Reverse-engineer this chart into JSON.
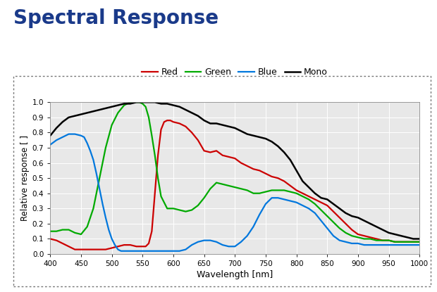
{
  "title": "Spectral Response",
  "title_color": "#1a3a8a",
  "title_fontsize": 20,
  "xlabel": "Wavelength [nm]",
  "ylabel": "Relative response [ ]",
  "xlim": [
    400,
    1000
  ],
  "ylim": [
    0.0,
    1.0
  ],
  "xticks": [
    400,
    450,
    500,
    550,
    600,
    650,
    700,
    750,
    800,
    850,
    900,
    950,
    1000
  ],
  "yticks": [
    0.0,
    0.1,
    0.2,
    0.3,
    0.4,
    0.5,
    0.6,
    0.7,
    0.8,
    0.9,
    1.0
  ],
  "background_color": "#ffffff",
  "plot_bg_color": "#e8e8e8",
  "red": {
    "wavelengths": [
      400,
      410,
      420,
      430,
      440,
      450,
      460,
      470,
      480,
      490,
      500,
      510,
      520,
      530,
      540,
      550,
      555,
      560,
      565,
      570,
      575,
      580,
      585,
      590,
      595,
      600,
      610,
      620,
      630,
      640,
      650,
      660,
      670,
      680,
      690,
      700,
      710,
      720,
      730,
      740,
      750,
      760,
      770,
      780,
      790,
      800,
      810,
      820,
      830,
      840,
      850,
      860,
      870,
      880,
      890,
      900,
      910,
      920,
      930,
      940,
      950,
      960,
      970,
      980,
      990,
      1000
    ],
    "values": [
      0.1,
      0.09,
      0.07,
      0.05,
      0.03,
      0.03,
      0.03,
      0.03,
      0.03,
      0.03,
      0.04,
      0.05,
      0.06,
      0.06,
      0.05,
      0.05,
      0.05,
      0.07,
      0.15,
      0.4,
      0.65,
      0.82,
      0.87,
      0.88,
      0.88,
      0.87,
      0.86,
      0.84,
      0.8,
      0.75,
      0.68,
      0.67,
      0.68,
      0.65,
      0.64,
      0.63,
      0.6,
      0.58,
      0.56,
      0.55,
      0.53,
      0.51,
      0.5,
      0.48,
      0.45,
      0.42,
      0.4,
      0.38,
      0.36,
      0.34,
      0.32,
      0.28,
      0.24,
      0.2,
      0.16,
      0.13,
      0.12,
      0.11,
      0.1,
      0.09,
      0.09,
      0.08,
      0.08,
      0.08,
      0.08,
      0.08
    ],
    "color": "#cc0000",
    "linewidth": 1.6,
    "label": "Red"
  },
  "green": {
    "wavelengths": [
      400,
      410,
      420,
      430,
      440,
      450,
      460,
      470,
      480,
      490,
      500,
      510,
      520,
      530,
      535,
      540,
      545,
      550,
      555,
      560,
      565,
      570,
      575,
      580,
      590,
      600,
      610,
      620,
      630,
      640,
      650,
      660,
      670,
      680,
      690,
      700,
      710,
      720,
      730,
      740,
      750,
      760,
      770,
      780,
      790,
      800,
      810,
      820,
      830,
      840,
      850,
      860,
      870,
      880,
      890,
      900,
      910,
      920,
      930,
      940,
      950,
      960,
      970,
      980,
      990,
      1000
    ],
    "values": [
      0.15,
      0.15,
      0.16,
      0.16,
      0.14,
      0.13,
      0.18,
      0.3,
      0.5,
      0.7,
      0.85,
      0.93,
      0.98,
      1.0,
      1.0,
      1.0,
      1.0,
      0.99,
      0.97,
      0.9,
      0.78,
      0.65,
      0.5,
      0.38,
      0.3,
      0.3,
      0.29,
      0.28,
      0.29,
      0.32,
      0.37,
      0.43,
      0.47,
      0.46,
      0.45,
      0.44,
      0.43,
      0.42,
      0.4,
      0.4,
      0.41,
      0.42,
      0.42,
      0.42,
      0.41,
      0.4,
      0.38,
      0.36,
      0.33,
      0.29,
      0.25,
      0.21,
      0.17,
      0.14,
      0.12,
      0.11,
      0.1,
      0.1,
      0.09,
      0.09,
      0.09,
      0.08,
      0.08,
      0.08,
      0.08,
      0.08
    ],
    "color": "#00aa00",
    "linewidth": 1.6,
    "label": "Green"
  },
  "blue": {
    "wavelengths": [
      400,
      410,
      420,
      430,
      440,
      450,
      455,
      460,
      465,
      470,
      475,
      480,
      485,
      490,
      495,
      500,
      505,
      510,
      515,
      520,
      530,
      540,
      550,
      560,
      570,
      580,
      590,
      600,
      610,
      620,
      630,
      640,
      650,
      660,
      670,
      680,
      690,
      700,
      710,
      720,
      730,
      740,
      750,
      760,
      770,
      780,
      790,
      800,
      810,
      820,
      830,
      840,
      850,
      860,
      870,
      880,
      890,
      900,
      910,
      920,
      930,
      940,
      950,
      960,
      970,
      980,
      990,
      1000
    ],
    "values": [
      0.72,
      0.75,
      0.77,
      0.79,
      0.79,
      0.78,
      0.77,
      0.73,
      0.68,
      0.62,
      0.53,
      0.43,
      0.33,
      0.24,
      0.16,
      0.1,
      0.06,
      0.03,
      0.02,
      0.02,
      0.02,
      0.02,
      0.02,
      0.02,
      0.02,
      0.02,
      0.02,
      0.02,
      0.02,
      0.03,
      0.06,
      0.08,
      0.09,
      0.09,
      0.08,
      0.06,
      0.05,
      0.05,
      0.08,
      0.12,
      0.18,
      0.26,
      0.33,
      0.37,
      0.37,
      0.36,
      0.35,
      0.34,
      0.32,
      0.3,
      0.27,
      0.22,
      0.17,
      0.12,
      0.09,
      0.08,
      0.07,
      0.07,
      0.06,
      0.06,
      0.06,
      0.06,
      0.06,
      0.06,
      0.06,
      0.06,
      0.06,
      0.06
    ],
    "color": "#0077dd",
    "linewidth": 1.6,
    "label": "Blue"
  },
  "mono": {
    "wavelengths": [
      400,
      410,
      420,
      430,
      440,
      450,
      460,
      470,
      480,
      490,
      500,
      510,
      520,
      530,
      540,
      550,
      560,
      570,
      580,
      590,
      600,
      610,
      620,
      630,
      640,
      650,
      660,
      670,
      680,
      690,
      700,
      710,
      720,
      730,
      740,
      750,
      760,
      770,
      780,
      790,
      800,
      810,
      820,
      830,
      840,
      850,
      860,
      870,
      880,
      890,
      900,
      910,
      920,
      930,
      940,
      950,
      960,
      970,
      980,
      990,
      1000
    ],
    "values": [
      0.78,
      0.83,
      0.87,
      0.9,
      0.91,
      0.92,
      0.93,
      0.94,
      0.95,
      0.96,
      0.97,
      0.98,
      0.99,
      0.99,
      1.0,
      1.0,
      1.0,
      1.0,
      0.99,
      0.99,
      0.98,
      0.97,
      0.95,
      0.93,
      0.91,
      0.88,
      0.86,
      0.86,
      0.85,
      0.84,
      0.83,
      0.81,
      0.79,
      0.78,
      0.77,
      0.76,
      0.74,
      0.71,
      0.67,
      0.62,
      0.55,
      0.48,
      0.44,
      0.4,
      0.37,
      0.36,
      0.33,
      0.3,
      0.27,
      0.25,
      0.24,
      0.22,
      0.2,
      0.18,
      0.16,
      0.14,
      0.13,
      0.12,
      0.11,
      0.1,
      0.1
    ],
    "color": "#000000",
    "linewidth": 1.8,
    "label": "Mono"
  }
}
